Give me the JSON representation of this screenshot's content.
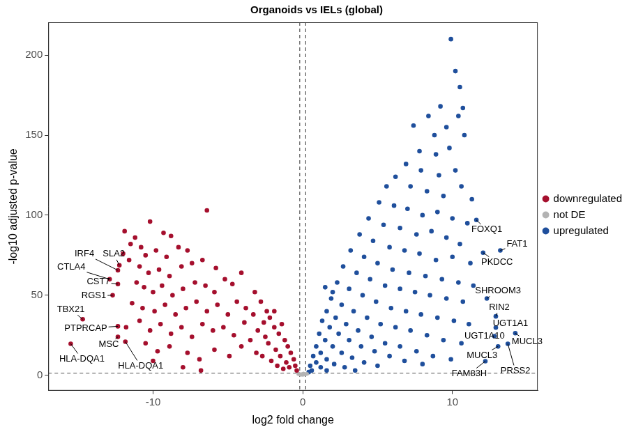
{
  "chart_data": {
    "type": "scatter",
    "title": "Organoids vs IELs (global)",
    "x_label": "log2 fold change",
    "y_label": "-log10 adjusted p-value",
    "xlim": [
      -17,
      15.7
    ],
    "ylim": [
      -9.6,
      220.5
    ],
    "xticks": [
      -10,
      0,
      10
    ],
    "yticks": [
      0,
      50,
      100,
      150,
      200
    ],
    "grid": false,
    "legend": "right",
    "marker": "circle",
    "reference_lines": {
      "x": [
        -0.2,
        0.2
      ],
      "y": [
        1.3
      ]
    },
    "series": [
      {
        "name": "downregulated",
        "color": "#a50f2d",
        "x": [
          -11.9,
          -11.2,
          -10.2,
          -9.3,
          -8.8,
          -6.4,
          -11.5,
          -10.8,
          -12,
          -10.5,
          -9.8,
          -9.1,
          -8.3,
          -7.7,
          -11.6,
          -10.9,
          -10.3,
          -9.6,
          -8.9,
          -8.1,
          -7.4,
          -6.7,
          -5.8,
          -11.1,
          -10.6,
          -10,
          -9.4,
          -8.7,
          -8,
          -7.2,
          -6.5,
          -5.9,
          -5.2,
          -4.7,
          -4.1,
          -11.4,
          -10.7,
          -9.9,
          -9.2,
          -8.5,
          -7.8,
          -7.1,
          -6.4,
          -5.7,
          -5,
          -4.4,
          -3.8,
          -3.2,
          -11.8,
          -10.9,
          -10.2,
          -9.5,
          -8.8,
          -8.1,
          -7.4,
          -6.7,
          -6,
          -5.3,
          -4.6,
          -3.9,
          -3.3,
          -2.8,
          -2.4,
          -10.5,
          -9.7,
          -8.9,
          -7.7,
          -6.9,
          -5.9,
          -4.9,
          -4.1,
          -3.5,
          -3,
          -2.6,
          -2.2,
          -1.9,
          -1.6,
          -1.4,
          -1.2,
          -1,
          -0.8,
          -0.6,
          -0.5,
          -0.4,
          -2.3,
          -1.8,
          -1.5,
          -1.1,
          -0.9,
          -2.7,
          -2.1,
          -1.7,
          -1.3,
          -3.1,
          -2.5,
          -1.9,
          -8,
          -6.8,
          -10,
          -12.35,
          -12.25,
          -12.9,
          -12.35,
          -12.7,
          -14.7,
          -12.35,
          -12.35,
          -15.5,
          -11.85
        ],
        "values": [
          90,
          86,
          96,
          89,
          87,
          103,
          82,
          80,
          76,
          75,
          78,
          74,
          80,
          78,
          72,
          68,
          64,
          66,
          62,
          68,
          70,
          72,
          67,
          58,
          55,
          52,
          56,
          50,
          54,
          58,
          56,
          52,
          60,
          57,
          64,
          45,
          42,
          40,
          44,
          38,
          42,
          46,
          40,
          44,
          38,
          46,
          42,
          52,
          30,
          34,
          28,
          32,
          26,
          30,
          24,
          32,
          28,
          30,
          25,
          33,
          38,
          46,
          40,
          20,
          15,
          18,
          14,
          10,
          16,
          12,
          18,
          22,
          28,
          33,
          36,
          30,
          26,
          32,
          22,
          18,
          14,
          10,
          6,
          3,
          20,
          16,
          12,
          8,
          5,
          12,
          9,
          6,
          4,
          14,
          24,
          40,
          5,
          3,
          9,
          65.6,
          68.7,
          60,
          57,
          50,
          35,
          30.6,
          24,
          19.7,
          21
        ]
      },
      {
        "name": "not DE",
        "color": "#b3b3b3",
        "x": [
          -0.3,
          -0.2,
          -0.1,
          0,
          0.1,
          0.2,
          0.3,
          -0.25,
          0.25,
          -0.15,
          0.15,
          0.05,
          -0.05
        ],
        "values": [
          0.8,
          0.5,
          0.3,
          0.2,
          0.4,
          0.6,
          0.9,
          1.1,
          1.0,
          0.7,
          0.8,
          1.2,
          0.9
        ]
      },
      {
        "name": "upregulated",
        "color": "#1f4f9c",
        "x": [
          9.9,
          10.2,
          10.5,
          10.7,
          10.4,
          9.2,
          8.4,
          7.4,
          8.8,
          9.6,
          10.8,
          7.8,
          8.9,
          9.8,
          6.9,
          7.9,
          9.1,
          10.2,
          6.2,
          5.6,
          7.2,
          8.3,
          9.4,
          10.6,
          11.3,
          5.1,
          6.1,
          7,
          8,
          9,
          10,
          11,
          4.4,
          5.4,
          6.5,
          7.6,
          8.6,
          9.6,
          10.5,
          3.8,
          4.7,
          5.8,
          6.8,
          7.8,
          8.9,
          10,
          11.2,
          3.2,
          4.1,
          5,
          6,
          7.1,
          8.2,
          9.3,
          10.4,
          11.4,
          2.7,
          3.6,
          4.5,
          5.5,
          6.5,
          7.5,
          8.5,
          9.6,
          10.7,
          2.3,
          3.1,
          4,
          4.9,
          5.9,
          6.9,
          7.9,
          9,
          10.1,
          11.1,
          1.9,
          2.6,
          3.4,
          4.3,
          5.2,
          6.2,
          7.2,
          8.3,
          9.4,
          10.6,
          1.6,
          2.2,
          2.9,
          3.7,
          4.6,
          5.5,
          6.5,
          7.6,
          8.7,
          9.9,
          1.3,
          1.8,
          2.4,
          3.1,
          3.9,
          4.8,
          5.8,
          6.8,
          8,
          1.1,
          1.5,
          2,
          2.6,
          3.3,
          4.1,
          5,
          0.9,
          1.2,
          1.6,
          2.1,
          2.8,
          3.5,
          0.7,
          0.9,
          1.2,
          1.6,
          0.5,
          0.6,
          0.4,
          2.0,
          1.5,
          11.6,
          13.2,
          12.05,
          12.3,
          12.9,
          12.9,
          12.8,
          14.2,
          13.05,
          12.2,
          13.7
        ],
        "values": [
          210,
          190,
          180,
          167,
          162,
          168,
          162,
          156,
          150,
          155,
          150,
          140,
          138,
          142,
          132,
          128,
          125,
          128,
          124,
          118,
          118,
          115,
          112,
          118,
          110,
          108,
          106,
          104,
          100,
          102,
          98,
          95,
          98,
          94,
          92,
          88,
          90,
          86,
          82,
          88,
          84,
          80,
          78,
          76,
          72,
          74,
          70,
          78,
          74,
          70,
          66,
          64,
          62,
          60,
          58,
          56,
          68,
          64,
          60,
          56,
          54,
          52,
          50,
          48,
          46,
          58,
          54,
          50,
          46,
          42,
          40,
          38,
          36,
          34,
          32,
          48,
          44,
          40,
          36,
          32,
          30,
          28,
          25,
          22,
          20,
          40,
          36,
          32,
          28,
          24,
          20,
          18,
          15,
          12,
          10,
          34,
          30,
          26,
          22,
          18,
          15,
          12,
          9,
          7,
          26,
          22,
          18,
          14,
          11,
          8,
          6,
          18,
          14,
          10,
          7,
          5,
          3,
          12,
          8,
          5,
          3,
          6,
          3,
          2,
          52,
          55,
          97,
          78,
          76.6,
          48,
          36.8,
          29.8,
          24.5,
          26.3,
          18,
          8.8,
          19.7
        ]
      }
    ],
    "annotations": [
      {
        "text": "IRF4",
        "x": -12.35,
        "y": 65.6
      },
      {
        "text": "SLA2",
        "x": -12.25,
        "y": 68.7
      },
      {
        "text": "CTLA4",
        "x": -12.9,
        "y": 60
      },
      {
        "text": "CST7",
        "x": -12.35,
        "y": 57
      },
      {
        "text": "RGS1",
        "x": -12.7,
        "y": 50
      },
      {
        "text": "TBX21",
        "x": -14.7,
        "y": 35
      },
      {
        "text": "PTPRCAP",
        "x": -12.35,
        "y": 30.6
      },
      {
        "text": "MSC",
        "x": -12.35,
        "y": 24
      },
      {
        "text": "HLA-DQA1",
        "x": -15.5,
        "y": 19.7
      },
      {
        "text": "HLA-DQA1",
        "x": -11.85,
        "y": 21
      },
      {
        "text": "FOXQ1",
        "x": 11.6,
        "y": 97
      },
      {
        "text": "FAT1",
        "x": 13.2,
        "y": 78
      },
      {
        "text": "PKDCC",
        "x": 12.05,
        "y": 76.6
      },
      {
        "text": "SHROOM3",
        "x": 12.3,
        "y": 48
      },
      {
        "text": "RIN2",
        "x": 12.9,
        "y": 36.8
      },
      {
        "text": "UGT1A1",
        "x": 12.9,
        "y": 29.8
      },
      {
        "text": "UGT1A10",
        "x": 12.8,
        "y": 24.5
      },
      {
        "text": "MUCL3",
        "x": 14.2,
        "y": 26.3
      },
      {
        "text": "MUCL3",
        "x": 13.05,
        "y": 18
      },
      {
        "text": "FAM83H",
        "x": 12.2,
        "y": 8.8
      },
      {
        "text": "PRSS2",
        "x": 13.7,
        "y": 19.7
      }
    ]
  }
}
